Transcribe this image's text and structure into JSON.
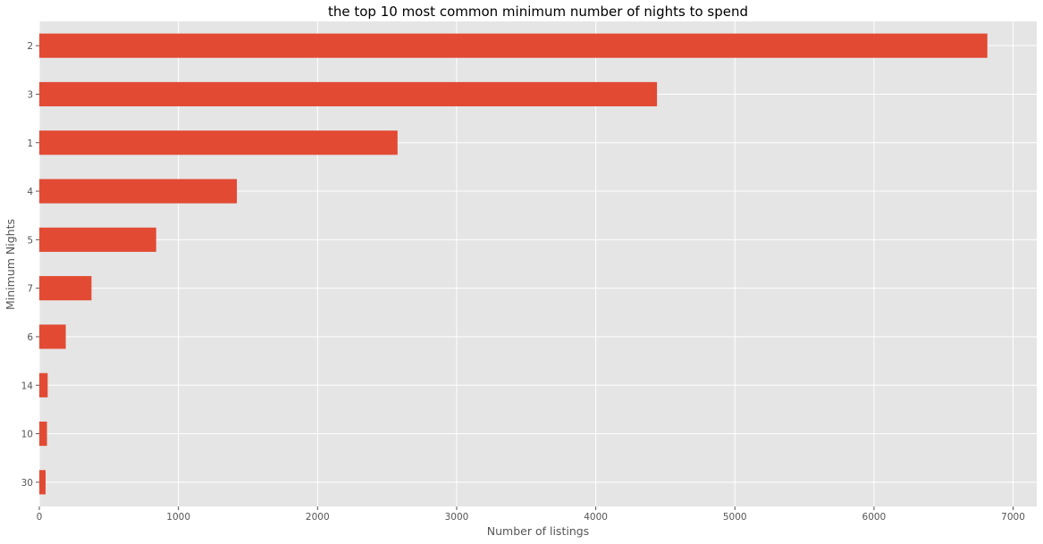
{
  "chart_data": {
    "type": "bar",
    "orientation": "horizontal",
    "title": "the top 10 most common minimum number of nights to spend",
    "xlabel": "Number of listings",
    "ylabel": "Minimum Nights",
    "categories": [
      "2",
      "3",
      "1",
      "4",
      "5",
      "7",
      "6",
      "14",
      "10",
      "30"
    ],
    "values": [
      6815,
      4440,
      2575,
      1420,
      840,
      375,
      190,
      60,
      55,
      45
    ],
    "xlim": [
      0,
      7170
    ],
    "xticks": [
      0,
      1000,
      2000,
      3000,
      4000,
      5000,
      6000,
      7000
    ],
    "grid": true,
    "legend": "none",
    "colors": {
      "bar": "#E24A33",
      "plot_background": "#E5E5E5",
      "grid": "#FFFFFF",
      "text": "#555555"
    }
  }
}
